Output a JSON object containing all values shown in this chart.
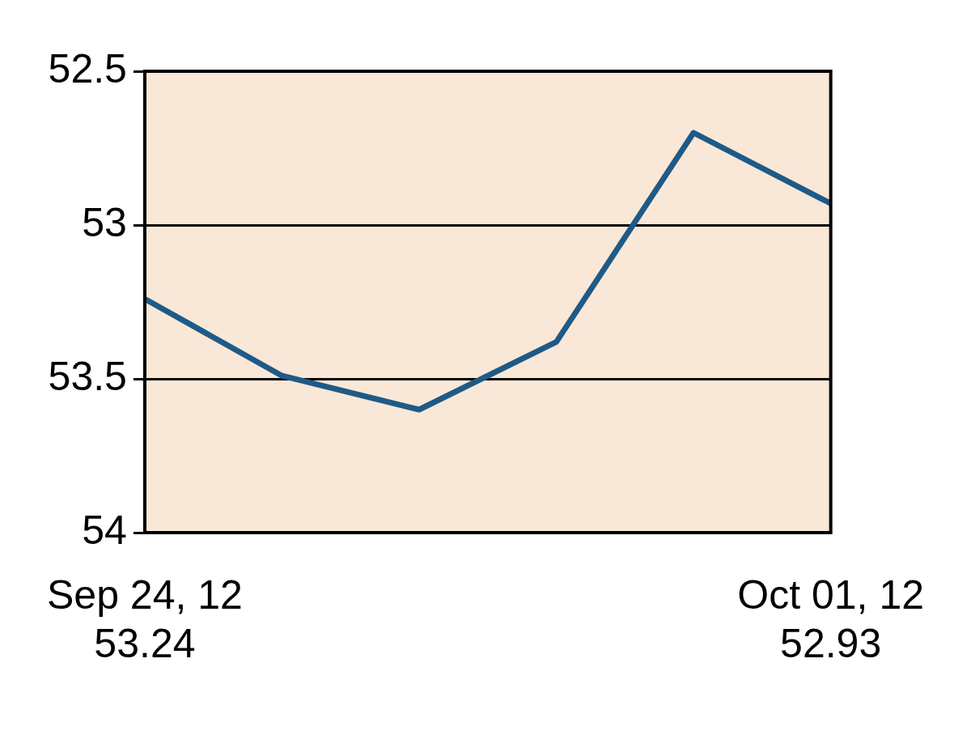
{
  "chart_data": {
    "type": "line",
    "categories": [
      "Sep 24, 12",
      null,
      null,
      null,
      null,
      "Oct 01, 12"
    ],
    "series": [
      {
        "color": "#1f5a87",
        "values": [
          53.24,
          53.49,
          53.6,
          53.38,
          52.7,
          52.93
        ],
        "value_labels": [
          "53.24",
          null,
          null,
          null,
          null,
          "52.93"
        ]
      }
    ],
    "ylim": [
      54,
      52.5
    ],
    "yticks": [
      52.5,
      53,
      53.5,
      54
    ],
    "grid": "y",
    "legend": false,
    "marker": "none",
    "line_style": "solid"
  }
}
